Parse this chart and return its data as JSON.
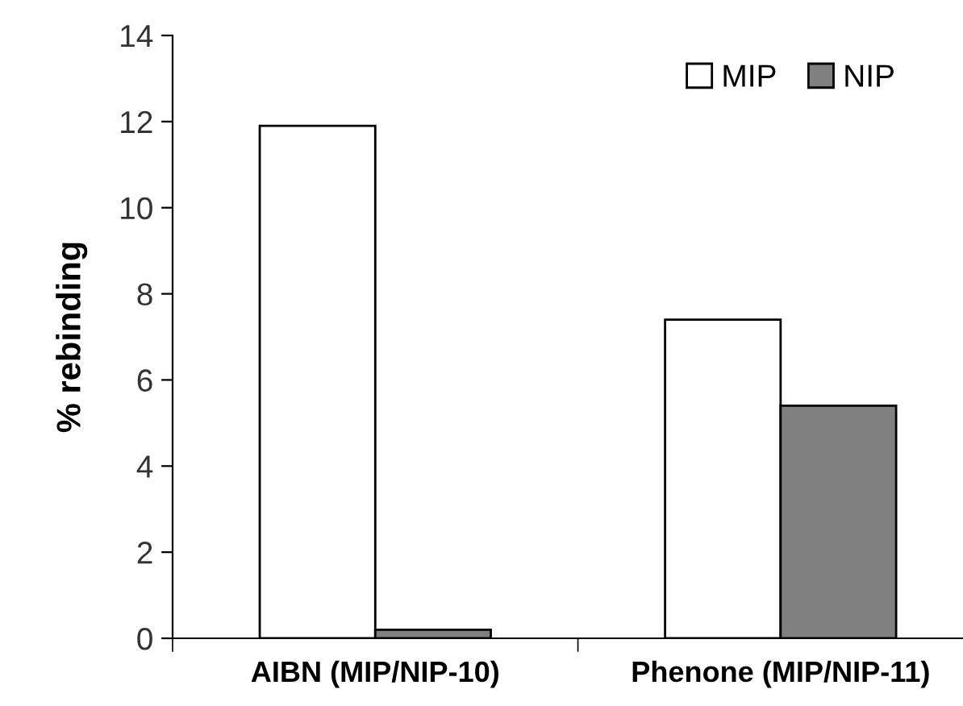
{
  "chart_data": {
    "type": "bar",
    "ylabel": "% rebinding",
    "categories": [
      "AIBN (MIP/NIP-10)",
      "Phenone (MIP/NIP-11)"
    ],
    "series": [
      {
        "name": "MIP",
        "color": "#ffffff",
        "values": [
          11.9,
          7.4
        ]
      },
      {
        "name": "NIP",
        "color": "#808080",
        "values": [
          0.2,
          5.4
        ]
      }
    ],
    "ylim": [
      0,
      14
    ],
    "yticks": [
      0,
      2,
      4,
      6,
      8,
      10,
      12,
      14
    ],
    "grid": false,
    "legend": "top right"
  }
}
